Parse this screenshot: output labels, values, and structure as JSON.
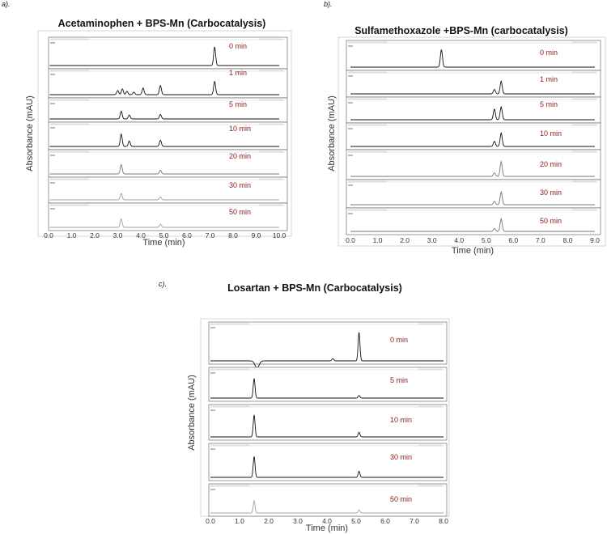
{
  "chart_data": [
    {
      "panel": "a).",
      "type": "line",
      "title": "Acetaminophen + BPS-Mn (Carbocatalysis)",
      "xlabel": "Time (min)",
      "ylabel": "Absorbance (mAU)",
      "xlim": [
        0,
        10
      ],
      "xticks": [
        "0.0",
        "1.0",
        "2.0",
        "3.0",
        "4.0",
        "5.0",
        "6.0",
        "7.0",
        "8.0",
        "9.0",
        "10.0"
      ],
      "series": [
        {
          "name": "0 min",
          "peaks": [
            {
              "x": 7.2,
              "h": 1.0
            }
          ]
        },
        {
          "name": "1 min",
          "peaks": [
            {
              "x": 3.0,
              "h": 0.25
            },
            {
              "x": 3.2,
              "h": 0.35
            },
            {
              "x": 3.4,
              "h": 0.2
            },
            {
              "x": 3.7,
              "h": 0.15
            },
            {
              "x": 4.1,
              "h": 0.4
            },
            {
              "x": 4.85,
              "h": 0.55
            },
            {
              "x": 7.2,
              "h": 0.8
            }
          ]
        },
        {
          "name": "5 min",
          "peaks": [
            {
              "x": 3.15,
              "h": 0.6
            },
            {
              "x": 3.5,
              "h": 0.3
            },
            {
              "x": 4.85,
              "h": 0.35
            }
          ]
        },
        {
          "name": "10 min",
          "peaks": [
            {
              "x": 3.15,
              "h": 0.8
            },
            {
              "x": 3.5,
              "h": 0.35
            },
            {
              "x": 4.85,
              "h": 0.4
            }
          ]
        },
        {
          "name": "20 min",
          "peaks": [
            {
              "x": 3.15,
              "h": 0.6
            },
            {
              "x": 4.85,
              "h": 0.25
            }
          ]
        },
        {
          "name": "30 min",
          "peaks": [
            {
              "x": 3.15,
              "h": 0.45
            },
            {
              "x": 4.85,
              "h": 0.2
            }
          ]
        },
        {
          "name": "50 min",
          "peaks": [
            {
              "x": 3.15,
              "h": 0.55
            },
            {
              "x": 4.85,
              "h": 0.2
            }
          ]
        }
      ]
    },
    {
      "panel": "b).",
      "type": "line",
      "title": "Sulfamethoxazole +BPS-Mn (carbocatalysis)",
      "xlabel": "Time (min)",
      "ylabel": "Absorbance (mAU)",
      "xlim": [
        0,
        9
      ],
      "xticks": [
        "0.0",
        "1.0",
        "2.0",
        "3.0",
        "4.0",
        "5.0",
        "6.0",
        "7.0",
        "8.0",
        "9.0"
      ],
      "series": [
        {
          "name": "0 min",
          "peaks": [
            {
              "x": 3.35,
              "h": 1.0
            }
          ]
        },
        {
          "name": "1 min",
          "peaks": [
            {
              "x": 5.3,
              "h": 0.3
            },
            {
              "x": 5.55,
              "h": 0.85
            }
          ]
        },
        {
          "name": "5 min",
          "peaks": [
            {
              "x": 5.3,
              "h": 0.75
            },
            {
              "x": 5.55,
              "h": 0.9
            }
          ]
        },
        {
          "name": "10 min",
          "peaks": [
            {
              "x": 5.3,
              "h": 0.35
            },
            {
              "x": 5.55,
              "h": 0.9
            }
          ]
        },
        {
          "name": "20 min",
          "peaks": [
            {
              "x": 5.3,
              "h": 0.2
            },
            {
              "x": 5.55,
              "h": 0.85
            }
          ]
        },
        {
          "name": "30 min",
          "peaks": [
            {
              "x": 5.3,
              "h": 0.2
            },
            {
              "x": 5.55,
              "h": 0.8
            }
          ]
        },
        {
          "name": "50 min",
          "peaks": [
            {
              "x": 5.3,
              "h": 0.2
            },
            {
              "x": 5.55,
              "h": 0.85
            }
          ]
        }
      ]
    },
    {
      "panel": "c).",
      "type": "line",
      "title": "Losartan + BPS-Mn (Carbocatalysis)",
      "xlabel": "Time (min)",
      "ylabel": "Absorbance (mAU)",
      "xlim": [
        0,
        8
      ],
      "xticks": [
        "0.0",
        "1.0",
        "2.0",
        "3.0",
        "4.0",
        "5.0",
        "6.0",
        "7.0",
        "8.0"
      ],
      "series": [
        {
          "name": "0 min",
          "peaks": [
            {
              "x": 4.2,
              "h": 0.08
            },
            {
              "x": 5.1,
              "h": 1.0
            }
          ],
          "dip": {
            "x": 1.6,
            "h": 0.25
          }
        },
        {
          "name": "5 min",
          "peaks": [
            {
              "x": 1.5,
              "h": 0.9
            },
            {
              "x": 5.1,
              "h": 0.12
            }
          ]
        },
        {
          "name": "10 min",
          "peaks": [
            {
              "x": 1.5,
              "h": 0.95
            },
            {
              "x": 5.1,
              "h": 0.2
            }
          ]
        },
        {
          "name": "30 min",
          "peaks": [
            {
              "x": 1.5,
              "h": 0.85
            },
            {
              "x": 5.1,
              "h": 0.25
            }
          ]
        },
        {
          "name": "50 min",
          "peaks": [
            {
              "x": 1.5,
              "h": 0.6
            },
            {
              "x": 5.1,
              "h": 0.15
            }
          ]
        }
      ]
    }
  ]
}
